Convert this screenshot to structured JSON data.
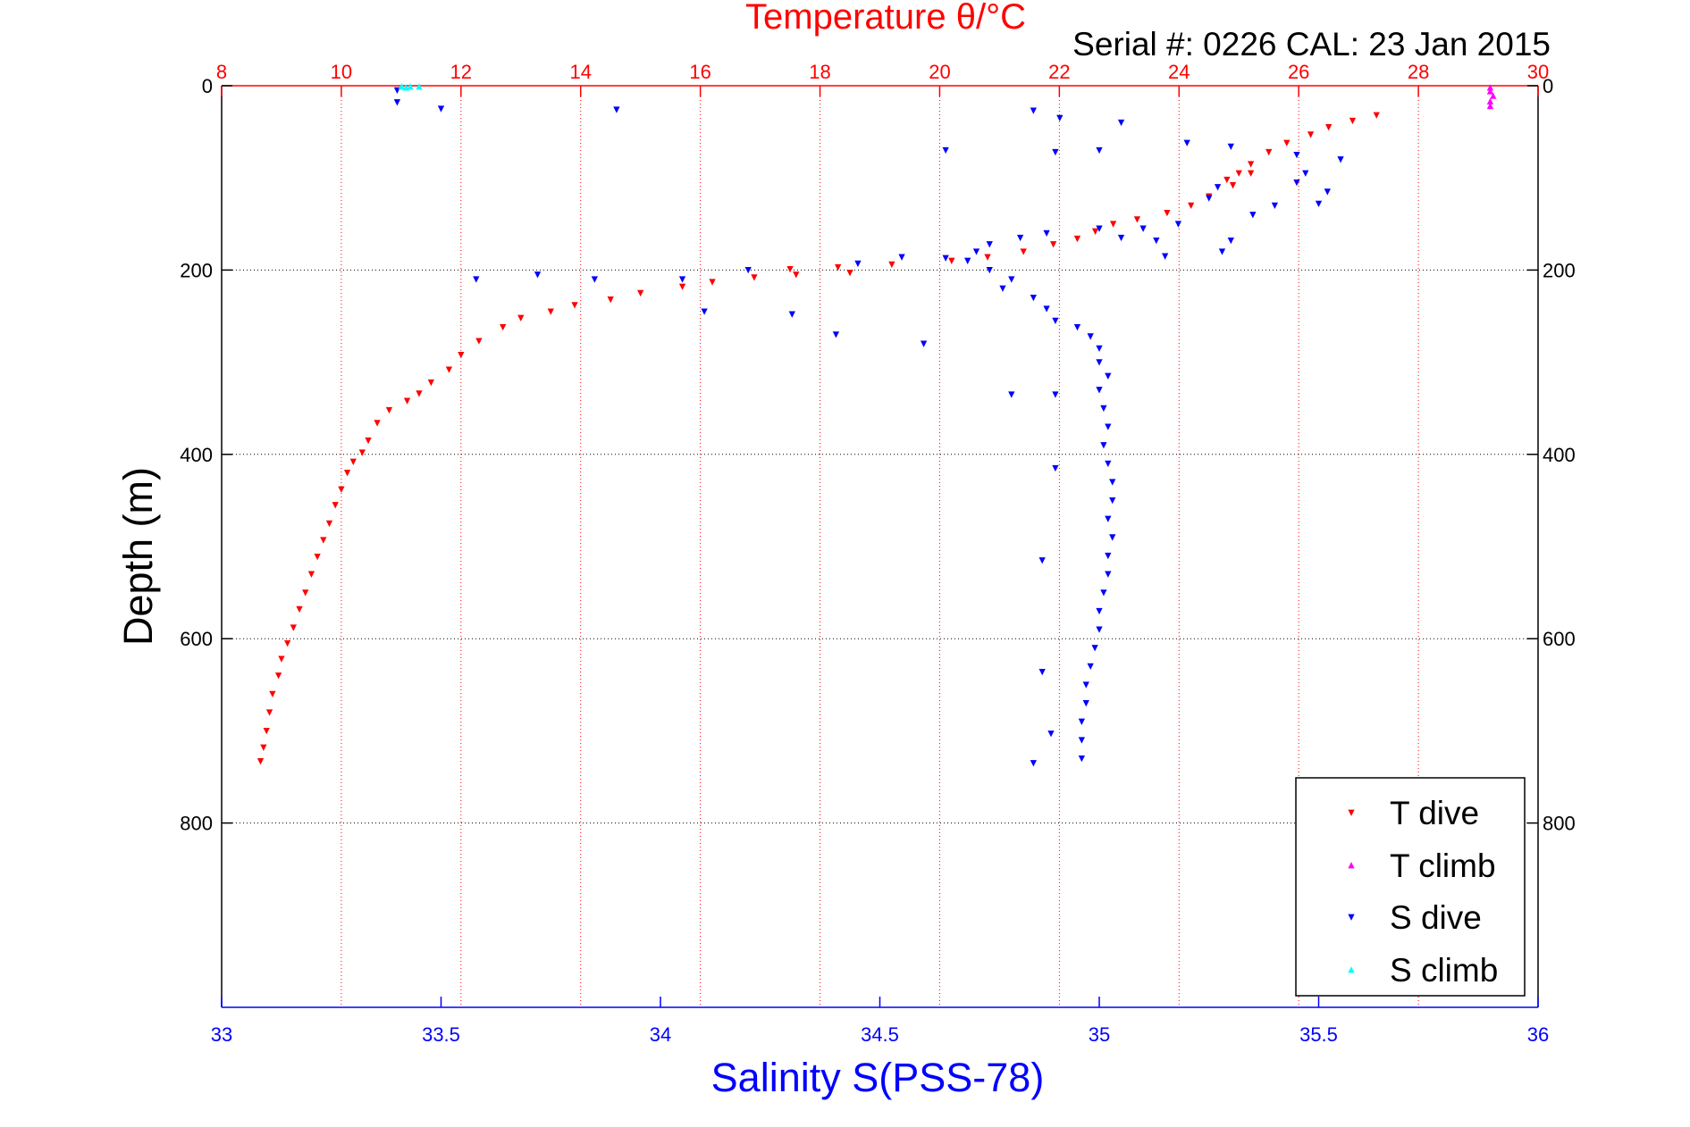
{
  "chart_data": {
    "type": "scatter",
    "title": "Temperature θ/°C",
    "subtitle": "Serial #: 0226  CAL: 23 Jan 2015",
    "xlabel": "Salinity S(PSS-78)",
    "ylabel": "Depth (m)",
    "x_salinity": {
      "lim": [
        33,
        36
      ],
      "ticks": [
        "33",
        "33.5",
        "34",
        "34.5",
        "35",
        "35.5",
        "36"
      ],
      "color": "#0000ff",
      "position": "bottom"
    },
    "x_temperature": {
      "lim": [
        8,
        30
      ],
      "ticks": [
        "8",
        "10",
        "12",
        "14",
        "16",
        "18",
        "20",
        "22",
        "24",
        "26",
        "28",
        "30"
      ],
      "color": "#ff0000",
      "position": "top",
      "grid": "dotted red vertical"
    },
    "y_depth": {
      "lim": [
        0,
        1000
      ],
      "reversed": true,
      "ticks": [
        "0",
        "200",
        "400",
        "600",
        "800"
      ],
      "grid": "dotted gray horizontal",
      "both_sides": true
    },
    "legend": {
      "placement": "bottom-right",
      "entries": [
        "T dive",
        "T climb",
        "S dive",
        "S climb"
      ]
    },
    "series": [
      {
        "name": "T dive",
        "axis": "temperature",
        "marker": "triangle-down",
        "color": "#ff0000",
        "points": [
          [
            27.3,
            32
          ],
          [
            26.9,
            38
          ],
          [
            26.5,
            45
          ],
          [
            26.2,
            53
          ],
          [
            25.8,
            62
          ],
          [
            25.5,
            72
          ],
          [
            25.2,
            85
          ],
          [
            25.0,
            95
          ],
          [
            24.8,
            102
          ],
          [
            25.2,
            95
          ],
          [
            24.9,
            108
          ],
          [
            24.5,
            120
          ],
          [
            24.2,
            130
          ],
          [
            23.8,
            138
          ],
          [
            23.3,
            145
          ],
          [
            22.9,
            150
          ],
          [
            22.6,
            158
          ],
          [
            22.3,
            166
          ],
          [
            21.9,
            172
          ],
          [
            21.4,
            180
          ],
          [
            20.8,
            186
          ],
          [
            20.2,
            190
          ],
          [
            19.2,
            194
          ],
          [
            18.3,
            197
          ],
          [
            17.5,
            199
          ],
          [
            17.6,
            205
          ],
          [
            18.5,
            203
          ],
          [
            16.9,
            208
          ],
          [
            16.2,
            213
          ],
          [
            15.7,
            218
          ],
          [
            15.0,
            225
          ],
          [
            14.5,
            232
          ],
          [
            13.9,
            238
          ],
          [
            13.5,
            245
          ],
          [
            13.0,
            252
          ],
          [
            12.7,
            262
          ],
          [
            12.3,
            277
          ],
          [
            12.0,
            292
          ],
          [
            11.8,
            308
          ],
          [
            11.5,
            322
          ],
          [
            11.3,
            334
          ],
          [
            11.1,
            342
          ],
          [
            10.8,
            352
          ],
          [
            10.6,
            366
          ],
          [
            10.45,
            385
          ],
          [
            10.35,
            398
          ],
          [
            10.2,
            408
          ],
          [
            10.1,
            420
          ],
          [
            10.0,
            438
          ],
          [
            9.9,
            455
          ],
          [
            9.8,
            475
          ],
          [
            9.7,
            493
          ],
          [
            9.6,
            511
          ],
          [
            9.5,
            530
          ],
          [
            9.4,
            550
          ],
          [
            9.3,
            568
          ],
          [
            9.2,
            588
          ],
          [
            9.1,
            605
          ],
          [
            9.0,
            622
          ],
          [
            8.95,
            640
          ],
          [
            8.85,
            660
          ],
          [
            8.8,
            680
          ],
          [
            8.75,
            700
          ],
          [
            8.7,
            718
          ],
          [
            8.65,
            733
          ]
        ]
      },
      {
        "name": "T climb",
        "axis": "temperature",
        "marker": "triangle-up",
        "color": "#ff00ff",
        "points": [
          [
            29.2,
            2
          ],
          [
            29.2,
            6
          ],
          [
            29.25,
            11
          ],
          [
            29.2,
            17
          ],
          [
            29.2,
            22
          ]
        ]
      },
      {
        "name": "S dive",
        "axis": "salinity",
        "marker": "triangle-down",
        "color": "#0000ff",
        "points": [
          [
            33.4,
            5
          ],
          [
            33.4,
            18
          ],
          [
            33.5,
            25
          ],
          [
            33.9,
            26
          ],
          [
            34.85,
            27
          ],
          [
            34.91,
            35
          ],
          [
            35.05,
            40
          ],
          [
            34.65,
            70
          ],
          [
            34.9,
            72
          ],
          [
            35.0,
            70
          ],
          [
            35.2,
            62
          ],
          [
            35.3,
            66
          ],
          [
            35.45,
            75
          ],
          [
            35.55,
            80
          ],
          [
            35.47,
            95
          ],
          [
            35.45,
            105
          ],
          [
            35.52,
            115
          ],
          [
            35.5,
            128
          ],
          [
            35.4,
            130
          ],
          [
            35.27,
            110
          ],
          [
            35.25,
            122
          ],
          [
            35.35,
            140
          ],
          [
            35.18,
            150
          ],
          [
            35.1,
            155
          ],
          [
            35.13,
            168
          ],
          [
            35.3,
            168
          ],
          [
            35.28,
            180
          ],
          [
            35.15,
            185
          ],
          [
            35.0,
            155
          ],
          [
            35.05,
            165
          ],
          [
            34.88,
            160
          ],
          [
            34.82,
            165
          ],
          [
            34.75,
            172
          ],
          [
            34.72,
            180
          ],
          [
            34.7,
            190
          ],
          [
            34.65,
            187
          ],
          [
            34.75,
            200
          ],
          [
            34.8,
            210
          ],
          [
            34.78,
            220
          ],
          [
            34.85,
            230
          ],
          [
            34.88,
            242
          ],
          [
            34.9,
            255
          ],
          [
            34.95,
            262
          ],
          [
            34.98,
            272
          ],
          [
            35.0,
            285
          ],
          [
            35.0,
            300
          ],
          [
            35.02,
            315
          ],
          [
            35.0,
            330
          ],
          [
            35.01,
            350
          ],
          [
            35.02,
            370
          ],
          [
            35.01,
            390
          ],
          [
            35.02,
            410
          ],
          [
            35.03,
            430
          ],
          [
            35.03,
            450
          ],
          [
            35.02,
            470
          ],
          [
            35.03,
            490
          ],
          [
            35.02,
            510
          ],
          [
            35.02,
            530
          ],
          [
            35.01,
            550
          ],
          [
            35.0,
            570
          ],
          [
            35.0,
            590
          ],
          [
            34.99,
            610
          ],
          [
            34.98,
            630
          ],
          [
            34.97,
            650
          ],
          [
            34.97,
            670
          ],
          [
            34.96,
            690
          ],
          [
            34.96,
            710
          ],
          [
            34.96,
            730
          ],
          [
            34.85,
            735
          ],
          [
            34.89,
            703
          ],
          [
            34.87,
            636
          ],
          [
            34.87,
            515
          ],
          [
            34.9,
            415
          ],
          [
            34.9,
            335
          ],
          [
            34.8,
            335
          ],
          [
            34.6,
            280
          ],
          [
            34.4,
            270
          ],
          [
            34.3,
            248
          ],
          [
            34.1,
            245
          ],
          [
            34.05,
            210
          ],
          [
            33.85,
            210
          ],
          [
            33.72,
            205
          ],
          [
            33.58,
            210
          ],
          [
            34.2,
            200
          ],
          [
            34.45,
            193
          ],
          [
            34.55,
            186
          ]
        ]
      },
      {
        "name": "S climb",
        "axis": "salinity",
        "marker": "triangle-up",
        "color": "#00ffff",
        "points": [
          [
            33.41,
            1
          ],
          [
            33.43,
            1
          ],
          [
            33.45,
            1
          ],
          [
            33.42,
            2
          ]
        ]
      }
    ]
  }
}
